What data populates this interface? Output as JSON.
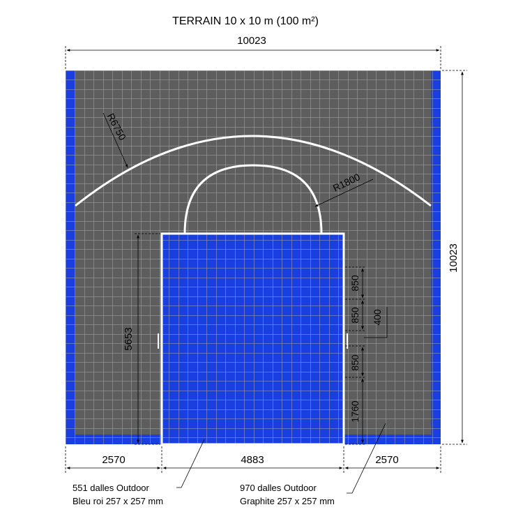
{
  "title": "TERRAIN 10 x 10 m (100 m²)",
  "dimensions": {
    "overall_width": "10023",
    "overall_height": "10023",
    "key_height": "5653",
    "left_margin": "2570",
    "key_width": "4883",
    "right_margin": "2570",
    "spacing_1": "850",
    "spacing_2": "850",
    "spacing_3": "850",
    "spacing_gap": "400",
    "bottom_distance": "1760"
  },
  "radii": {
    "three_point": "R6750",
    "free_throw": "R1800"
  },
  "legend": {
    "blue": {
      "line1": "551 dalles Outdoor",
      "line2": "Bleu roi 257 x 257 mm"
    },
    "graphite": {
      "line1": "970 dalles Outdoor",
      "line2": "Graphite 257 x 257 mm"
    }
  },
  "colors": {
    "blue": "#1a3fe0",
    "graphite": "#5e5e5e",
    "grid_line": "#a9a9a9",
    "court_line": "#ffffff"
  }
}
